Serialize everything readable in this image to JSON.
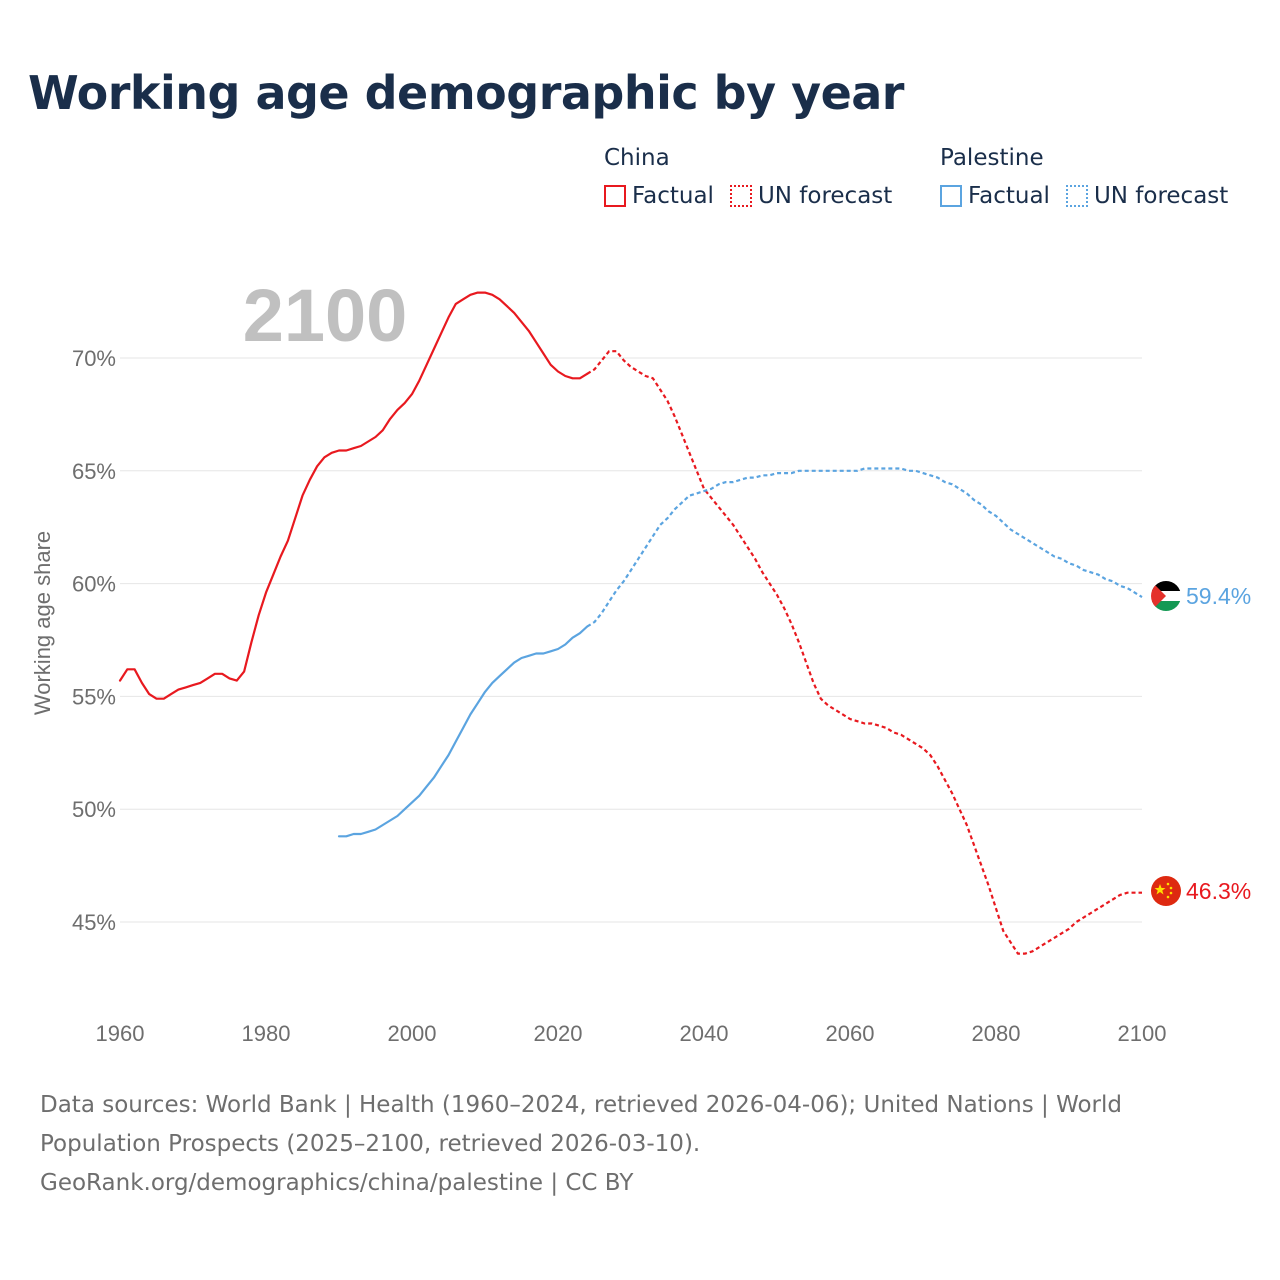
{
  "title": "Working age demographic by year",
  "year_label": "2100",
  "legend": [
    {
      "name": "China",
      "color": "#e8191f",
      "factual_label": "Factual",
      "forecast_label": "UN forecast"
    },
    {
      "name": "Palestine",
      "color": "#5ba4e0",
      "factual_label": "Factual",
      "forecast_label": "UN forecast"
    }
  ],
  "chart_data": {
    "type": "line",
    "title": "Working age demographic by year",
    "xlabel": "",
    "ylabel": "Working age share",
    "xlim": [
      1960,
      2100
    ],
    "ylim": [
      42.5,
      73
    ],
    "y_ticks": [
      45,
      50,
      55,
      60,
      65,
      70
    ],
    "y_tick_labels": [
      "45%",
      "50%",
      "55%",
      "60%",
      "65%",
      "70%"
    ],
    "x_ticks": [
      1960,
      1980,
      2000,
      2020,
      2040,
      2060,
      2080,
      2100
    ],
    "x_tick_labels": [
      "1960",
      "1980",
      "2000",
      "2020",
      "2040",
      "2060",
      "2080",
      "2100"
    ],
    "grid": true,
    "series": [
      {
        "name": "China",
        "color": "#e8191f",
        "end_label": "46.3%",
        "end_value": 46.3,
        "factual": [
          [
            1960,
            55.7
          ],
          [
            1961,
            56.2
          ],
          [
            1962,
            56.2
          ],
          [
            1963,
            55.6
          ],
          [
            1964,
            55.1
          ],
          [
            1965,
            54.9
          ],
          [
            1966,
            54.9
          ],
          [
            1967,
            55.1
          ],
          [
            1968,
            55.3
          ],
          [
            1969,
            55.4
          ],
          [
            1970,
            55.5
          ],
          [
            1971,
            55.6
          ],
          [
            1972,
            55.8
          ],
          [
            1973,
            56.0
          ],
          [
            1974,
            56.0
          ],
          [
            1975,
            55.8
          ],
          [
            1976,
            55.7
          ],
          [
            1977,
            56.1
          ],
          [
            1978,
            57.4
          ],
          [
            1979,
            58.6
          ],
          [
            1980,
            59.6
          ],
          [
            1981,
            60.4
          ],
          [
            1982,
            61.2
          ],
          [
            1983,
            61.9
          ],
          [
            1984,
            62.9
          ],
          [
            1985,
            63.9
          ],
          [
            1986,
            64.6
          ],
          [
            1987,
            65.2
          ],
          [
            1988,
            65.6
          ],
          [
            1989,
            65.8
          ],
          [
            1990,
            65.9
          ],
          [
            1991,
            65.9
          ],
          [
            1992,
            66.0
          ],
          [
            1993,
            66.1
          ],
          [
            1994,
            66.3
          ],
          [
            1995,
            66.5
          ],
          [
            1996,
            66.8
          ],
          [
            1997,
            67.3
          ],
          [
            1998,
            67.7
          ],
          [
            1999,
            68.0
          ],
          [
            2000,
            68.4
          ],
          [
            2001,
            69.0
          ],
          [
            2002,
            69.7
          ],
          [
            2003,
            70.4
          ],
          [
            2004,
            71.1
          ],
          [
            2005,
            71.8
          ],
          [
            2006,
            72.4
          ],
          [
            2007,
            72.6
          ],
          [
            2008,
            72.8
          ],
          [
            2009,
            72.9
          ],
          [
            2010,
            72.9
          ],
          [
            2011,
            72.8
          ],
          [
            2012,
            72.6
          ],
          [
            2013,
            72.3
          ],
          [
            2014,
            72.0
          ],
          [
            2015,
            71.6
          ],
          [
            2016,
            71.2
          ],
          [
            2017,
            70.7
          ],
          [
            2018,
            70.2
          ],
          [
            2019,
            69.7
          ],
          [
            2020,
            69.4
          ],
          [
            2021,
            69.2
          ],
          [
            2022,
            69.1
          ],
          [
            2023,
            69.1
          ],
          [
            2024,
            69.3
          ]
        ],
        "forecast": [
          [
            2024,
            69.3
          ],
          [
            2025,
            69.5
          ],
          [
            2026,
            69.9
          ],
          [
            2027,
            70.3
          ],
          [
            2028,
            70.3
          ],
          [
            2029,
            69.9
          ],
          [
            2030,
            69.6
          ],
          [
            2031,
            69.4
          ],
          [
            2032,
            69.2
          ],
          [
            2033,
            69.1
          ],
          [
            2034,
            68.6
          ],
          [
            2035,
            68.1
          ],
          [
            2036,
            67.4
          ],
          [
            2037,
            66.6
          ],
          [
            2038,
            65.8
          ],
          [
            2039,
            65.0
          ],
          [
            2040,
            64.2
          ],
          [
            2041,
            63.8
          ],
          [
            2042,
            63.4
          ],
          [
            2043,
            63.0
          ],
          [
            2044,
            62.6
          ],
          [
            2045,
            62.1
          ],
          [
            2046,
            61.6
          ],
          [
            2047,
            61.1
          ],
          [
            2048,
            60.5
          ],
          [
            2049,
            60.0
          ],
          [
            2050,
            59.5
          ],
          [
            2051,
            58.9
          ],
          [
            2052,
            58.2
          ],
          [
            2053,
            57.4
          ],
          [
            2054,
            56.5
          ],
          [
            2055,
            55.6
          ],
          [
            2056,
            54.9
          ],
          [
            2057,
            54.6
          ],
          [
            2058,
            54.4
          ],
          [
            2059,
            54.2
          ],
          [
            2060,
            54.0
          ],
          [
            2061,
            53.9
          ],
          [
            2062,
            53.8
          ],
          [
            2063,
            53.8
          ],
          [
            2064,
            53.7
          ],
          [
            2065,
            53.6
          ],
          [
            2066,
            53.4
          ],
          [
            2067,
            53.3
          ],
          [
            2068,
            53.1
          ],
          [
            2069,
            52.9
          ],
          [
            2070,
            52.7
          ],
          [
            2071,
            52.4
          ],
          [
            2072,
            51.9
          ],
          [
            2073,
            51.3
          ],
          [
            2074,
            50.7
          ],
          [
            2075,
            50.0
          ],
          [
            2076,
            49.3
          ],
          [
            2077,
            48.4
          ],
          [
            2078,
            47.5
          ],
          [
            2079,
            46.6
          ],
          [
            2080,
            45.6
          ],
          [
            2081,
            44.6
          ],
          [
            2082,
            44.1
          ],
          [
            2083,
            43.6
          ],
          [
            2084,
            43.6
          ],
          [
            2085,
            43.7
          ],
          [
            2086,
            43.9
          ],
          [
            2087,
            44.1
          ],
          [
            2088,
            44.3
          ],
          [
            2089,
            44.5
          ],
          [
            2090,
            44.7
          ],
          [
            2091,
            45.0
          ],
          [
            2092,
            45.2
          ],
          [
            2093,
            45.4
          ],
          [
            2094,
            45.6
          ],
          [
            2095,
            45.8
          ],
          [
            2096,
            46.0
          ],
          [
            2097,
            46.2
          ],
          [
            2098,
            46.3
          ],
          [
            2099,
            46.3
          ],
          [
            2100,
            46.3
          ]
        ]
      },
      {
        "name": "Palestine",
        "color": "#5ba4e0",
        "end_label": "59.4%",
        "end_value": 59.4,
        "factual": [
          [
            1990,
            48.8
          ],
          [
            1991,
            48.8
          ],
          [
            1992,
            48.9
          ],
          [
            1993,
            48.9
          ],
          [
            1994,
            49.0
          ],
          [
            1995,
            49.1
          ],
          [
            1996,
            49.3
          ],
          [
            1997,
            49.5
          ],
          [
            1998,
            49.7
          ],
          [
            1999,
            50.0
          ],
          [
            2000,
            50.3
          ],
          [
            2001,
            50.6
          ],
          [
            2002,
            51.0
          ],
          [
            2003,
            51.4
          ],
          [
            2004,
            51.9
          ],
          [
            2005,
            52.4
          ],
          [
            2006,
            53.0
          ],
          [
            2007,
            53.6
          ],
          [
            2008,
            54.2
          ],
          [
            2009,
            54.7
          ],
          [
            2010,
            55.2
          ],
          [
            2011,
            55.6
          ],
          [
            2012,
            55.9
          ],
          [
            2013,
            56.2
          ],
          [
            2014,
            56.5
          ],
          [
            2015,
            56.7
          ],
          [
            2016,
            56.8
          ],
          [
            2017,
            56.9
          ],
          [
            2018,
            56.9
          ],
          [
            2019,
            57.0
          ],
          [
            2020,
            57.1
          ],
          [
            2021,
            57.3
          ],
          [
            2022,
            57.6
          ],
          [
            2023,
            57.8
          ],
          [
            2024,
            58.1
          ]
        ],
        "forecast": [
          [
            2024,
            58.1
          ],
          [
            2025,
            58.3
          ],
          [
            2026,
            58.7
          ],
          [
            2027,
            59.2
          ],
          [
            2028,
            59.7
          ],
          [
            2029,
            60.1
          ],
          [
            2030,
            60.6
          ],
          [
            2031,
            61.1
          ],
          [
            2032,
            61.6
          ],
          [
            2033,
            62.1
          ],
          [
            2034,
            62.6
          ],
          [
            2035,
            62.9
          ],
          [
            2036,
            63.3
          ],
          [
            2037,
            63.6
          ],
          [
            2038,
            63.9
          ],
          [
            2039,
            64.0
          ],
          [
            2040,
            64.1
          ],
          [
            2041,
            64.2
          ],
          [
            2042,
            64.4
          ],
          [
            2043,
            64.5
          ],
          [
            2044,
            64.5
          ],
          [
            2045,
            64.6
          ],
          [
            2046,
            64.7
          ],
          [
            2047,
            64.7
          ],
          [
            2048,
            64.8
          ],
          [
            2049,
            64.8
          ],
          [
            2050,
            64.9
          ],
          [
            2051,
            64.9
          ],
          [
            2052,
            64.9
          ],
          [
            2053,
            65.0
          ],
          [
            2054,
            65.0
          ],
          [
            2055,
            65.0
          ],
          [
            2056,
            65.0
          ],
          [
            2057,
            65.0
          ],
          [
            2058,
            65.0
          ],
          [
            2059,
            65.0
          ],
          [
            2060,
            65.0
          ],
          [
            2061,
            65.0
          ],
          [
            2062,
            65.1
          ],
          [
            2063,
            65.1
          ],
          [
            2064,
            65.1
          ],
          [
            2065,
            65.1
          ],
          [
            2066,
            65.1
          ],
          [
            2067,
            65.1
          ],
          [
            2068,
            65.0
          ],
          [
            2069,
            65.0
          ],
          [
            2070,
            64.9
          ],
          [
            2071,
            64.8
          ],
          [
            2072,
            64.7
          ],
          [
            2073,
            64.5
          ],
          [
            2074,
            64.4
          ],
          [
            2075,
            64.2
          ],
          [
            2076,
            64.0
          ],
          [
            2077,
            63.7
          ],
          [
            2078,
            63.5
          ],
          [
            2079,
            63.2
          ],
          [
            2080,
            63.0
          ],
          [
            2081,
            62.7
          ],
          [
            2082,
            62.4
          ],
          [
            2083,
            62.2
          ],
          [
            2084,
            62.0
          ],
          [
            2085,
            61.8
          ],
          [
            2086,
            61.6
          ],
          [
            2087,
            61.4
          ],
          [
            2088,
            61.2
          ],
          [
            2089,
            61.1
          ],
          [
            2090,
            60.9
          ],
          [
            2091,
            60.8
          ],
          [
            2092,
            60.6
          ],
          [
            2093,
            60.5
          ],
          [
            2094,
            60.4
          ],
          [
            2095,
            60.2
          ],
          [
            2096,
            60.1
          ],
          [
            2097,
            59.9
          ],
          [
            2098,
            59.8
          ],
          [
            2099,
            59.6
          ],
          [
            2100,
            59.4
          ]
        ]
      }
    ]
  },
  "sources": {
    "line1": "Data sources: World Bank | Health (1960–2024, retrieved 2026-04-06); United Nations | World",
    "line2": "Population Prospects (2025–2100, retrieved 2026-03-10).",
    "line3": "GeoRank.org/demographics/china/palestine | CC BY"
  }
}
